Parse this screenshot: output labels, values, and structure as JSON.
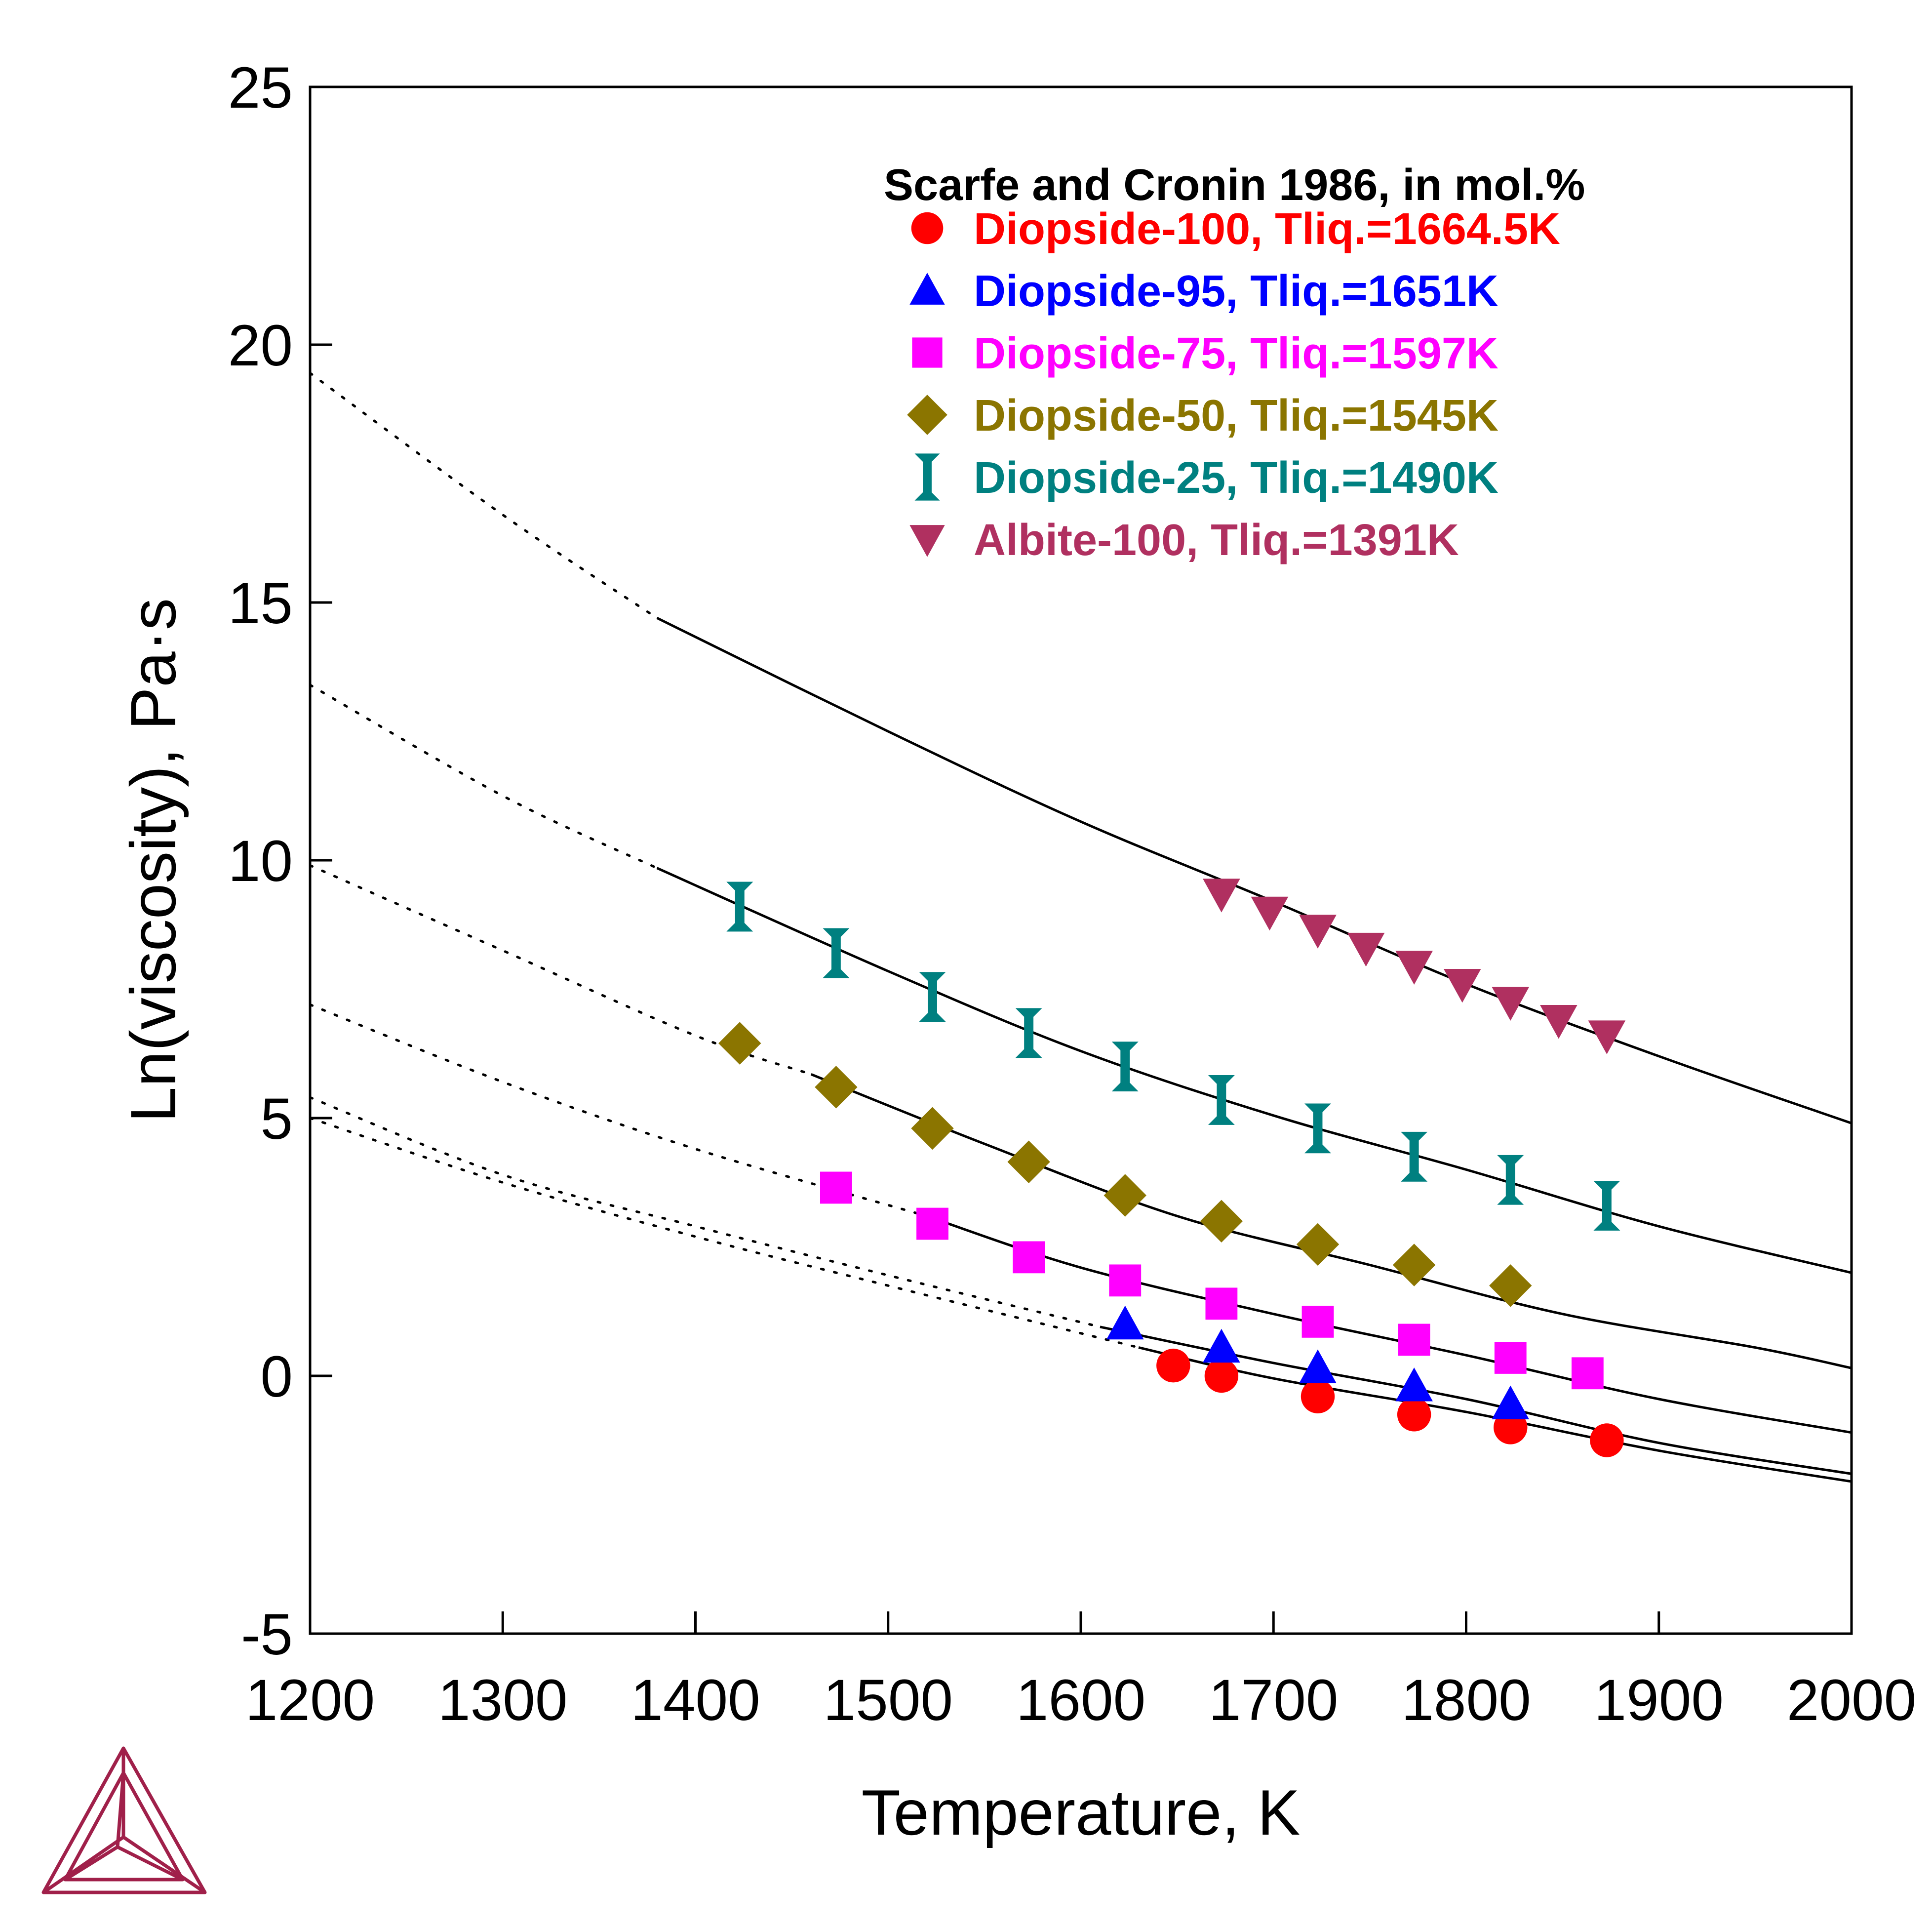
{
  "chart_data": {
    "type": "scatter",
    "xlabel": "Temperature, K",
    "ylabel": "Ln(viscosity), Pa·s",
    "xlim": [
      1200,
      2000
    ],
    "ylim": [
      -5,
      25
    ],
    "x_ticks": [
      1200,
      1300,
      1400,
      1500,
      1600,
      1700,
      1800,
      1900,
      2000
    ],
    "y_ticks": [
      -5,
      0,
      5,
      10,
      15,
      20,
      25
    ],
    "grid": false,
    "legend_position": "top-right",
    "legend_title": "Scarfe and Cronin 1986, in mol.%",
    "series": [
      {
        "name": "Diopside-100, Tliq.=1664.5K",
        "color": "#ff0000",
        "marker": "circle",
        "points": [
          [
            1648,
            0.2
          ],
          [
            1673,
            0.0
          ],
          [
            1723,
            -0.4
          ],
          [
            1773,
            -0.75
          ],
          [
            1823,
            -1.0
          ],
          [
            1873,
            -1.25
          ]
        ]
      },
      {
        "name": "Diopside-95, Tliq.=1651K",
        "color": "#0000ff",
        "marker": "triangle-up",
        "points": [
          [
            1623,
            1.0
          ],
          [
            1673,
            0.55
          ],
          [
            1723,
            0.15
          ],
          [
            1773,
            -0.2
          ],
          [
            1823,
            -0.55
          ]
        ]
      },
      {
        "name": "Diopside-75, Tliq.=1597K",
        "color": "#ff00ff",
        "marker": "square",
        "points": [
          [
            1473,
            3.65
          ],
          [
            1523,
            2.95
          ],
          [
            1573,
            2.3
          ],
          [
            1623,
            1.85
          ],
          [
            1673,
            1.4
          ],
          [
            1723,
            1.05
          ],
          [
            1773,
            0.7
          ],
          [
            1823,
            0.35
          ],
          [
            1863,
            0.05
          ]
        ]
      },
      {
        "name": "Diopside-50, Tliq.=1545K",
        "color": "#8b7500",
        "marker": "diamond",
        "points": [
          [
            1423,
            6.45
          ],
          [
            1473,
            5.6
          ],
          [
            1523,
            4.8
          ],
          [
            1573,
            4.15
          ],
          [
            1623,
            3.5
          ],
          [
            1673,
            3.0
          ],
          [
            1723,
            2.55
          ],
          [
            1773,
            2.15
          ],
          [
            1823,
            1.75
          ]
        ]
      },
      {
        "name": "Diopside-25, Tliq.=1490K",
        "color": "#008080",
        "marker": "bar",
        "points": [
          [
            1423,
            9.1
          ],
          [
            1473,
            8.2
          ],
          [
            1523,
            7.35
          ],
          [
            1573,
            6.65
          ],
          [
            1623,
            6.0
          ],
          [
            1673,
            5.35
          ],
          [
            1723,
            4.8
          ],
          [
            1773,
            4.25
          ],
          [
            1823,
            3.8
          ],
          [
            1873,
            3.3
          ]
        ]
      },
      {
        "name": "Albite-100, Tliq.=1391K",
        "color": "#b03060",
        "marker": "triangle-down",
        "points": [
          [
            1673,
            9.35
          ],
          [
            1698,
            9.0
          ],
          [
            1723,
            8.65
          ],
          [
            1748,
            8.3
          ],
          [
            1773,
            7.95
          ],
          [
            1798,
            7.6
          ],
          [
            1823,
            7.25
          ],
          [
            1848,
            6.9
          ],
          [
            1873,
            6.6
          ]
        ]
      }
    ],
    "model_curves": [
      {
        "name": "",
        "break_x": 1380,
        "points": [
          [
            1200,
            19.45
          ],
          [
            1300,
            16.7
          ],
          [
            1380,
            14.7
          ],
          [
            1500,
            12.5
          ],
          [
            1600,
            10.75
          ],
          [
            1700,
            9.2
          ],
          [
            1800,
            7.6
          ],
          [
            1900,
            6.2
          ],
          [
            2000,
            4.9
          ]
        ]
      },
      {
        "name": "",
        "break_x": 1380,
        "points": [
          [
            1200,
            13.4
          ],
          [
            1300,
            11.25
          ],
          [
            1380,
            9.85
          ],
          [
            1500,
            7.85
          ],
          [
            1600,
            6.3
          ],
          [
            1700,
            5.05
          ],
          [
            1800,
            4.0
          ],
          [
            1900,
            2.9
          ],
          [
            2000,
            2.0
          ]
        ]
      },
      {
        "name": "",
        "break_x": 1460,
        "points": [
          [
            1200,
            9.9
          ],
          [
            1300,
            8.25
          ],
          [
            1400,
            6.6
          ],
          [
            1460,
            5.85
          ],
          [
            1550,
            4.5
          ],
          [
            1650,
            3.1
          ],
          [
            1750,
            2.15
          ],
          [
            1850,
            1.2
          ],
          [
            1950,
            0.55
          ],
          [
            2000,
            0.15
          ]
        ]
      },
      {
        "name": "",
        "break_x": 1520,
        "points": [
          [
            1200,
            7.2
          ],
          [
            1300,
            5.7
          ],
          [
            1400,
            4.4
          ],
          [
            1520,
            3.1
          ],
          [
            1600,
            2.1
          ],
          [
            1700,
            1.2
          ],
          [
            1800,
            0.4
          ],
          [
            1900,
            -0.45
          ],
          [
            2000,
            -1.1
          ]
        ]
      },
      {
        "name": "",
        "break_x": 1610,
        "points": [
          [
            1200,
            5.4
          ],
          [
            1300,
            3.9
          ],
          [
            1400,
            2.9
          ],
          [
            1500,
            1.95
          ],
          [
            1610,
            0.95
          ],
          [
            1700,
            0.25
          ],
          [
            1800,
            -0.45
          ],
          [
            1900,
            -1.3
          ],
          [
            2000,
            -1.9
          ]
        ]
      },
      {
        "name": "",
        "break_x": 1630,
        "points": [
          [
            1200,
            5.0
          ],
          [
            1300,
            3.75
          ],
          [
            1400,
            2.7
          ],
          [
            1500,
            1.75
          ],
          [
            1630,
            0.55
          ],
          [
            1700,
            -0.05
          ],
          [
            1800,
            -0.7
          ],
          [
            1900,
            -1.45
          ],
          [
            2000,
            -2.05
          ]
        ]
      }
    ]
  },
  "logo": {
    "name": "thermo-calc-logo",
    "color": "#a0204a"
  }
}
